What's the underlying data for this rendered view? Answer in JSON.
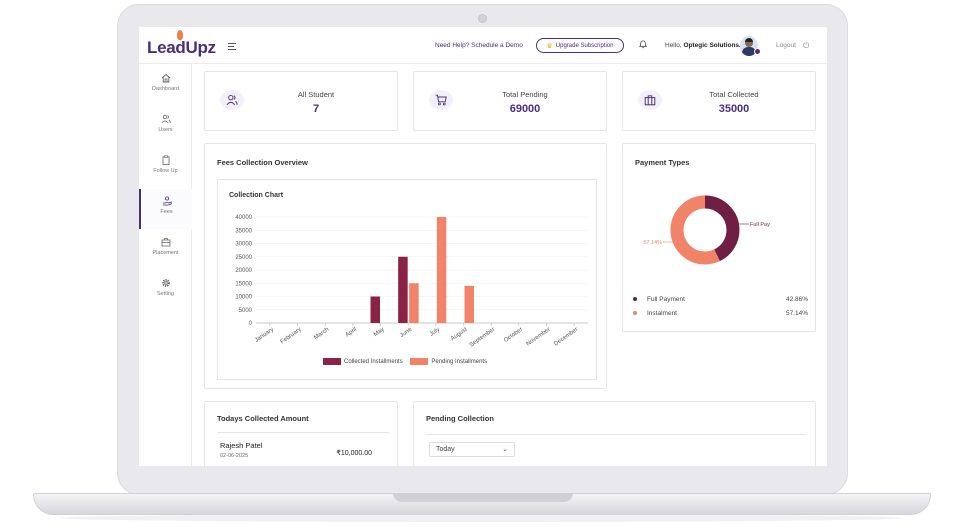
{
  "header": {
    "logo": "LeadUpz",
    "help_link": "Need Help? Schedule a Demo",
    "upgrade_label": "Upgrade Subscription",
    "hello_prefix": "Hello,",
    "org_name": "Optegic Solutions.",
    "logout_label": "Logout"
  },
  "sidebar": {
    "items": [
      {
        "label": "Dashboard",
        "icon": "home-icon"
      },
      {
        "label": "Users",
        "icon": "users-icon"
      },
      {
        "label": "Follow Up",
        "icon": "clipboard-icon"
      },
      {
        "label": "Fees",
        "icon": "hand-coin-icon",
        "active": true
      },
      {
        "label": "Placement",
        "icon": "briefcase-icon"
      },
      {
        "label": "Setting",
        "icon": "gear-icon"
      }
    ]
  },
  "stats": [
    {
      "label": "All Student",
      "value": "7",
      "icon": "users-icon"
    },
    {
      "label": "Total Pending",
      "value": "69000",
      "icon": "cart-icon"
    },
    {
      "label": "Total Collected",
      "value": "35000",
      "icon": "briefcase-icon"
    }
  ],
  "fees_overview": {
    "title": "Fees Collection Overview",
    "chart_title": "Collection Chart"
  },
  "colors": {
    "brand": "#4b2c82",
    "collected": "#8b2346",
    "pending": "#f08368",
    "full_payment": "#6e1f43",
    "instalment": "#f08368"
  },
  "chart_data": [
    {
      "type": "bar",
      "title": "Collection Chart",
      "categories": [
        "January",
        "February",
        "March",
        "April",
        "May",
        "June",
        "July",
        "August",
        "September",
        "October",
        "November",
        "December"
      ],
      "series": [
        {
          "name": "Collected Installments",
          "values": [
            0,
            0,
            0,
            0,
            10000,
            25000,
            0,
            0,
            0,
            0,
            0,
            0
          ]
        },
        {
          "name": "Pending Installments",
          "values": [
            0,
            0,
            0,
            0,
            0,
            15000,
            40000,
            14000,
            0,
            0,
            0,
            0
          ]
        }
      ],
      "yticks": [
        "40000",
        "35000",
        "30000",
        "25000",
        "20000",
        "15000",
        "10000",
        "5000",
        "0"
      ],
      "ylim": [
        0,
        40000
      ],
      "legend_position": "bottom"
    },
    {
      "type": "pie",
      "title": "Payment Types",
      "labels": [
        "Full Payment",
        "Instalment"
      ],
      "values": [
        42.86,
        57.14
      ],
      "data_labels": [
        "Full Pay",
        "57.14%"
      ]
    }
  ],
  "payment_types": {
    "title": "Payment Types",
    "rows": [
      {
        "label": "Full Payment",
        "pct": "42.86%"
      },
      {
        "label": "Instalment",
        "pct": "57.14%"
      }
    ]
  },
  "todays": {
    "title": "Todays Collected Amount",
    "entries": [
      {
        "name": "Rajesh Patel",
        "date": "02-06-2025",
        "amount": "₹10,000.00"
      }
    ]
  },
  "pending_collection": {
    "title": "Pending Collection",
    "filter_value": "Today"
  }
}
